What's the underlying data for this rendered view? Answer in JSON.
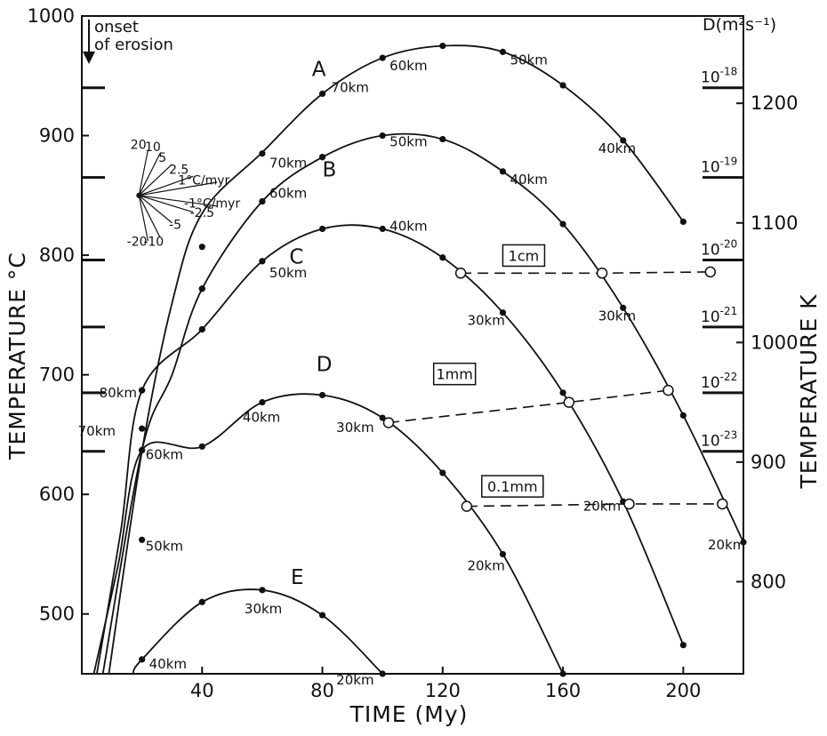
{
  "chart_data": {
    "type": "line",
    "xlabel": "TIME (My)",
    "ylabel": "TEMPERATURE °C",
    "y2label": "TEMPERATURE K",
    "d_axis_label": "D(m²s⁻¹)",
    "xlim": [
      0,
      220
    ],
    "ylim": [
      450,
      1000
    ],
    "x_ticks": [
      40,
      80,
      120,
      160,
      200
    ],
    "y_ticks": [
      500,
      600,
      700,
      800,
      900,
      1000
    ],
    "y2_ticks": [
      800,
      900,
      1000,
      1100,
      1200
    ],
    "d_ticks": [
      {
        "label": "10",
        "exp": "-18",
        "temp_c": 940
      },
      {
        "label": "10",
        "exp": "-19",
        "temp_c": 865
      },
      {
        "label": "10",
        "exp": "-20",
        "temp_c": 796
      },
      {
        "label": "10",
        "exp": "-21",
        "temp_c": 740
      },
      {
        "label": "10",
        "exp": "-22",
        "temp_c": 685
      },
      {
        "label": "10",
        "exp": "-23",
        "temp_c": 636
      }
    ],
    "onset_label": [
      "onset",
      "of erosion"
    ],
    "rate_fan": {
      "origin_temp_c": 850,
      "labels": [
        "20",
        "10",
        "5",
        "2.5",
        "1°C/myr",
        "-1°C/myr",
        "-2.5",
        "-5",
        "-20",
        "-10"
      ]
    },
    "series": [
      {
        "name": "A",
        "x": [
          100,
          120,
          140,
          160,
          180,
          200
        ],
        "y": [
          965,
          975,
          970,
          942,
          896,
          828
        ],
        "depth_labels": [
          {
            "x": 80,
            "y": 935,
            "text": "70km"
          },
          {
            "x": 100,
            "y": 965,
            "text": "60km"
          },
          {
            "x": 140,
            "y": 970,
            "text": "50km"
          },
          {
            "x": 180,
            "y": 896,
            "text": "40km"
          }
        ]
      },
      {
        "name": "B",
        "x": [
          40,
          60,
          80,
          100,
          120,
          140,
          160,
          180,
          200,
          220
        ],
        "y": [
          772,
          845,
          882,
          900,
          897,
          870,
          826,
          756,
          666,
          560
        ],
        "depth_labels": [
          {
            "x": 60,
            "y": 885,
            "text": "70km"
          },
          {
            "x": 100,
            "y": 900,
            "text": "50km"
          },
          {
            "x": 140,
            "y": 870,
            "text": "40km"
          },
          {
            "x": 180,
            "y": 756,
            "text": "30km"
          },
          {
            "x": 220,
            "y": 560,
            "text": "20km"
          }
        ]
      },
      {
        "name": "C",
        "x": [
          20,
          40,
          60,
          80,
          100,
          120,
          140,
          160,
          180,
          200
        ],
        "y": [
          687,
          738,
          795,
          822,
          822,
          798,
          752,
          685,
          594,
          474
        ],
        "depth_labels": [
          {
            "x": 60,
            "y": 845,
            "text": "60km"
          },
          {
            "x": 100,
            "y": 822,
            "text": "40km"
          },
          {
            "x": 140,
            "y": 752,
            "text": "30km"
          },
          {
            "x": 180,
            "y": 594,
            "text": "20km"
          }
        ]
      },
      {
        "name": "D",
        "x": [
          20,
          40,
          60,
          80,
          100,
          120,
          140,
          160
        ],
        "y": [
          637,
          640,
          677,
          683,
          664,
          618,
          550,
          450
        ],
        "depth_labels": [
          {
            "x": 60,
            "y": 795,
            "text": "50km"
          },
          {
            "x": 60,
            "y": 677,
            "text": "40km"
          },
          {
            "x": 100,
            "y": 664,
            "text": "30km"
          },
          {
            "x": 140,
            "y": 550,
            "text": "20km"
          }
        ]
      },
      {
        "name": "E",
        "x": [
          20,
          40,
          60,
          80,
          100
        ],
        "y": [
          462,
          510,
          520,
          499,
          450
        ],
        "depth_labels": [
          {
            "x": 20,
            "y": 462,
            "text": "40km"
          },
          {
            "x": 60,
            "y": 520,
            "text": "30km"
          },
          {
            "x": 100,
            "y": 450,
            "text": "20km"
          }
        ]
      }
    ],
    "early_depth_labels": [
      {
        "x": 20,
        "y": 687,
        "text": "80km"
      },
      {
        "x": 20,
        "y": 655,
        "text": "70km"
      },
      {
        "x": 20,
        "y": 637,
        "text": "60km"
      },
      {
        "x": 20,
        "y": 562,
        "text": "50km"
      }
    ],
    "closure_lines": [
      {
        "label": "1cm",
        "x": [
          126,
          173,
          209
        ],
        "y": [
          785,
          785,
          786
        ]
      },
      {
        "label": "1mm",
        "x": [
          102,
          162,
          195
        ],
        "y": [
          660,
          677,
          687
        ]
      },
      {
        "label": "0.1mm",
        "x": [
          128,
          182,
          213
        ],
        "y": [
          590,
          592,
          592
        ]
      }
    ]
  }
}
